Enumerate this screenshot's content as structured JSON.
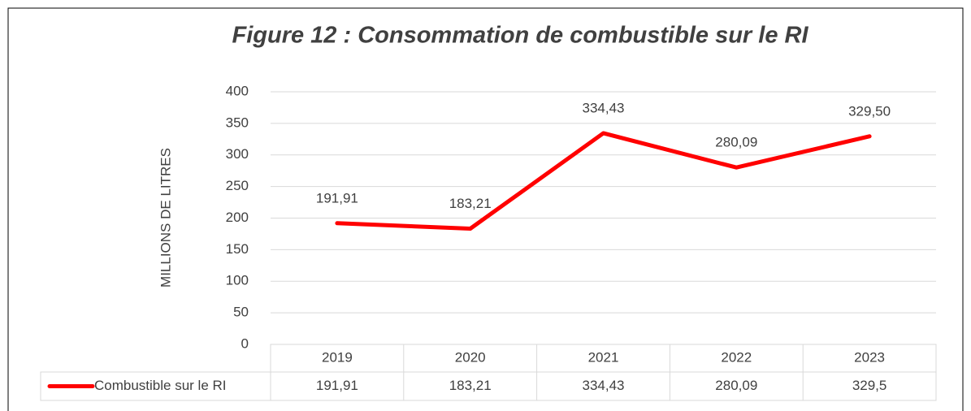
{
  "chart_data": {
    "type": "line",
    "title": "Figure 12 : Consommation de combustible sur le RI",
    "y_label": "MILLIONS DE LITRES",
    "categories": [
      "2019",
      "2020",
      "2021",
      "2022",
      "2023"
    ],
    "series": [
      {
        "name": "Combustible sur le RI",
        "color": "#ff0000",
        "values": [
          191.91,
          183.21,
          334.43,
          280.09,
          329.5
        ],
        "value_labels": [
          "191,91",
          "183,21",
          "334,43",
          "280,09",
          "329,50"
        ],
        "table_labels": [
          "191,91",
          "183,21",
          "334,43",
          "280,09",
          "329,5"
        ]
      }
    ],
    "ylim": [
      0,
      400
    ],
    "yticks": [
      0,
      50,
      100,
      150,
      200,
      250,
      300,
      350,
      400
    ],
    "grid": true
  }
}
